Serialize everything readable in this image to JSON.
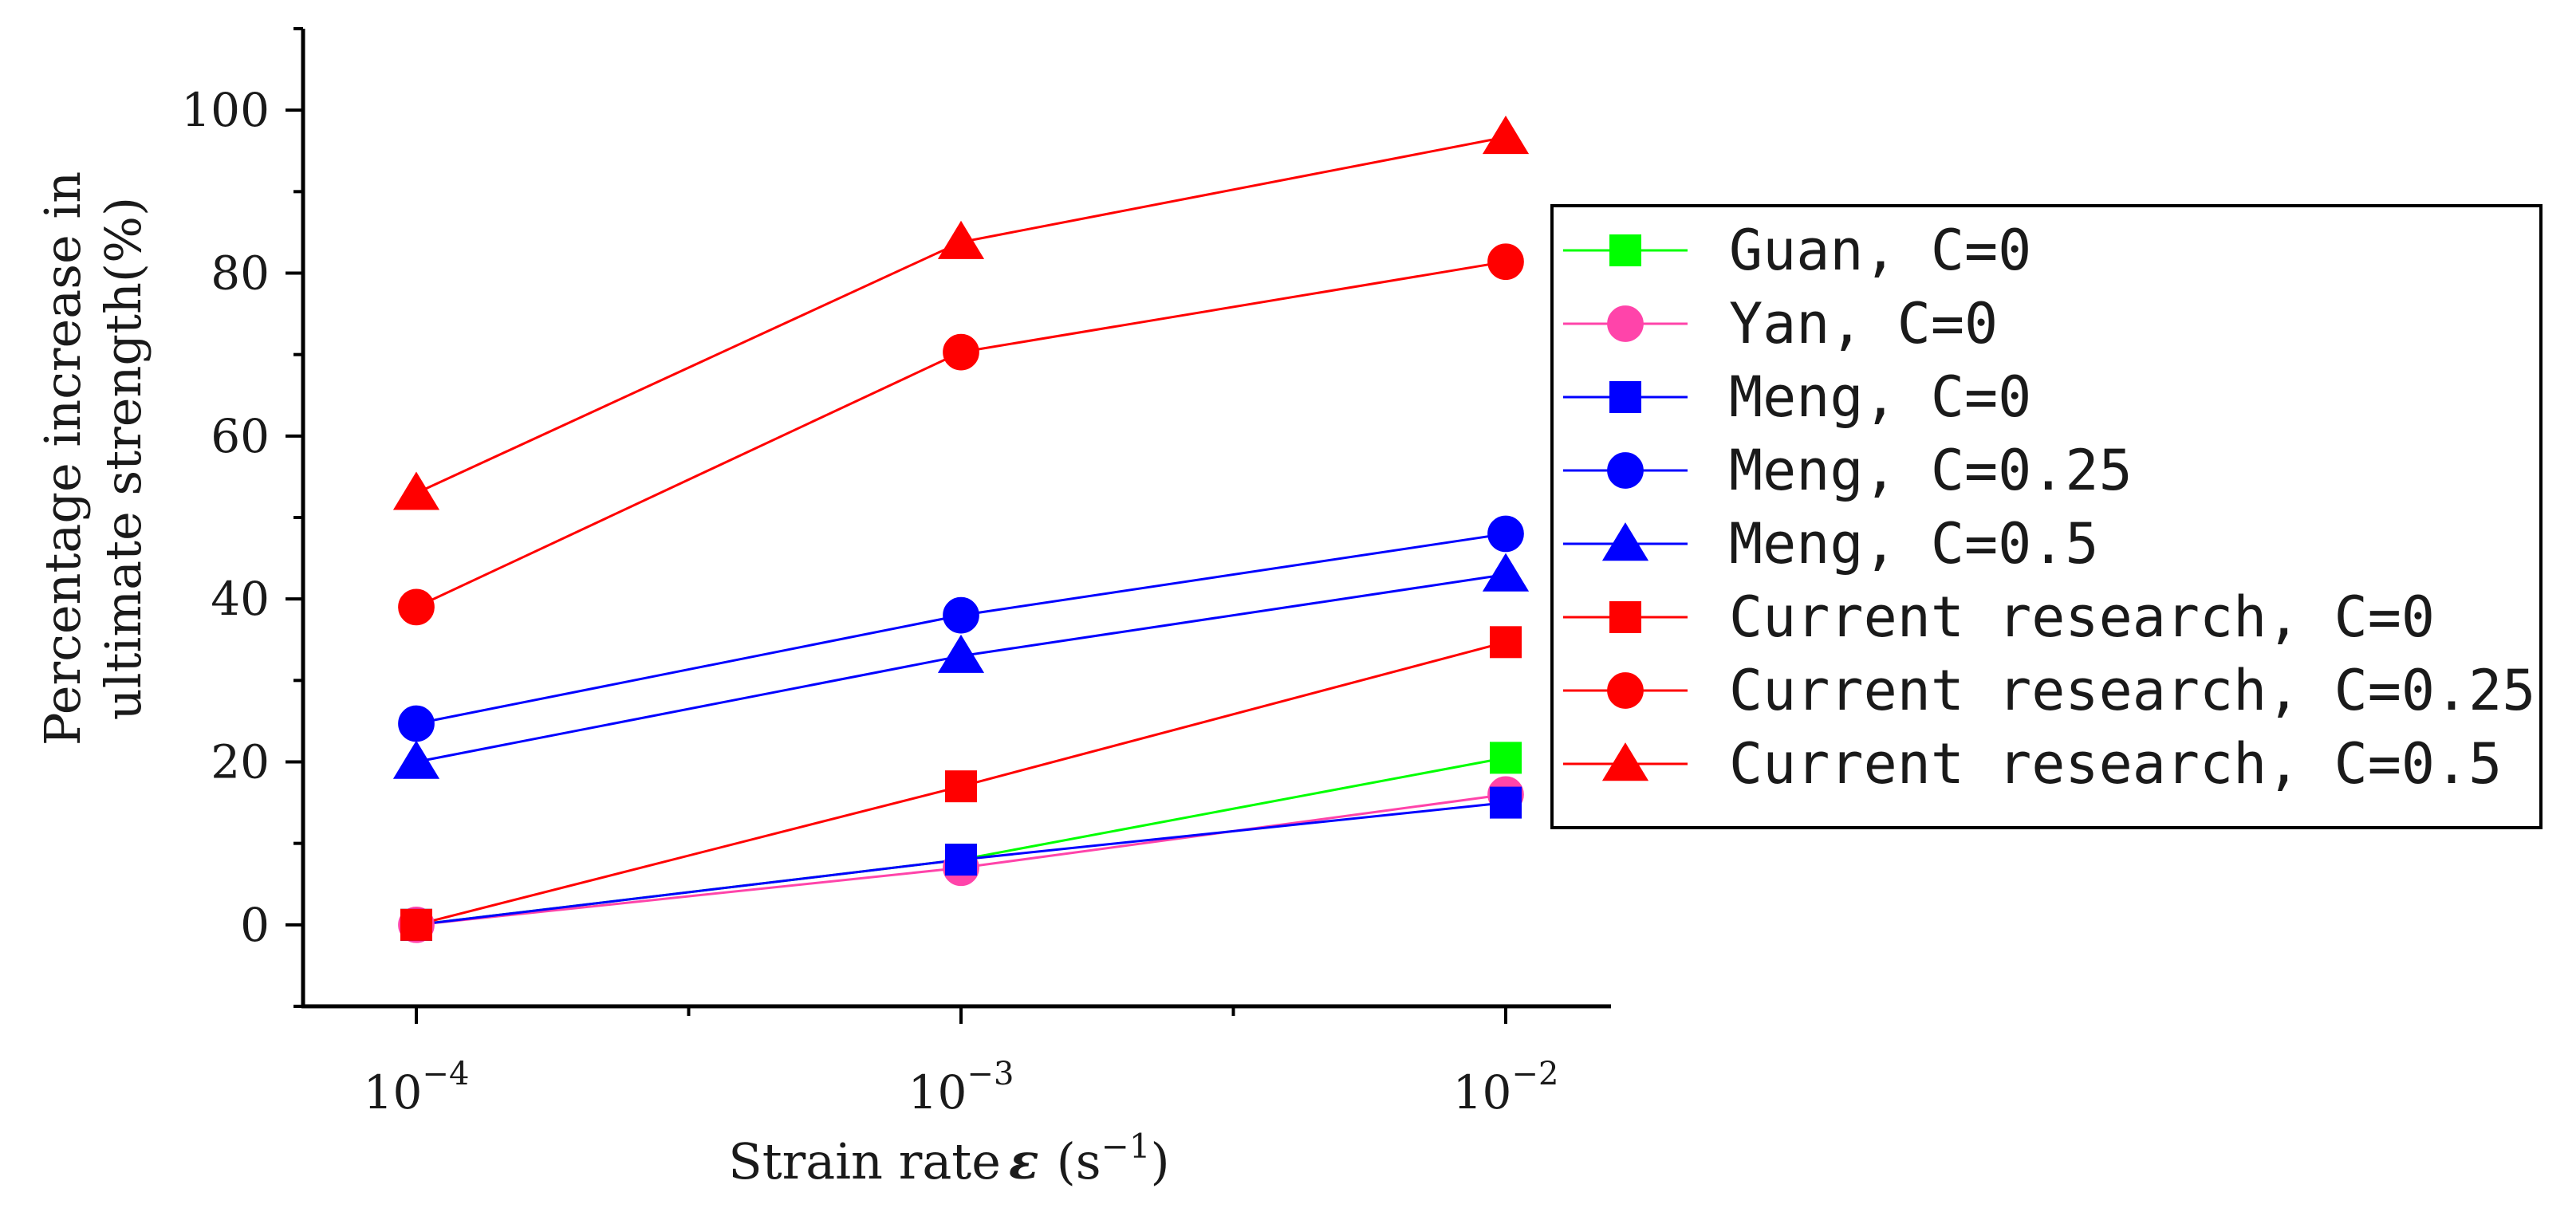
{
  "chart_data": {
    "type": "line",
    "title": "",
    "x": [
      "10^-4",
      "10^-3",
      "10^-2"
    ],
    "x_tick_labels": [
      {
        "base": "10",
        "exp": "−4"
      },
      {
        "base": "10",
        "exp": "−3"
      },
      {
        "base": "10",
        "exp": "−2"
      }
    ],
    "xlabel": {
      "prefix": "Strain rate",
      "symbol": "ε",
      "unit_open": "(s",
      "unit_exp": "−1",
      "unit_close": ")"
    },
    "ylabel": [
      "Percentage increase in",
      "ultimate strength(%)"
    ],
    "ylim": [
      -10,
      110
    ],
    "y_ticks": [
      0,
      20,
      40,
      60,
      80,
      100
    ],
    "y_tick_labels": [
      "0",
      "20",
      "40",
      "60",
      "80",
      "100"
    ],
    "legend_position": "right",
    "series": [
      {
        "name": "Guan, C=0",
        "color": "#00ff00",
        "marker": "square",
        "values": [
          0,
          8,
          20.5
        ]
      },
      {
        "name": "Yan, C=0",
        "color": "#ff44aa",
        "marker": "circle",
        "values": [
          0,
          7,
          16
        ]
      },
      {
        "name": "Meng, C=0",
        "color": "#0000ff",
        "marker": "square",
        "values": [
          0,
          8,
          15
        ]
      },
      {
        "name": "Meng, C=0.25",
        "color": "#0000ff",
        "marker": "circle",
        "values": [
          24.7,
          38,
          48
        ]
      },
      {
        "name": "Meng, C=0.5",
        "color": "#0000ff",
        "marker": "triangle",
        "values": [
          20,
          33,
          43
        ]
      },
      {
        "name": "Current research, C=0",
        "color": "#ff0000",
        "marker": "square",
        "values": [
          0,
          17,
          34.7
        ]
      },
      {
        "name": "Current research, C=0.25",
        "color": "#ff0000",
        "marker": "circle",
        "values": [
          39,
          70.3,
          81.4
        ]
      },
      {
        "name": "Current research, C=0.5",
        "color": "#ff0000",
        "marker": "triangle",
        "values": [
          53,
          83.8,
          96.7
        ]
      }
    ]
  }
}
